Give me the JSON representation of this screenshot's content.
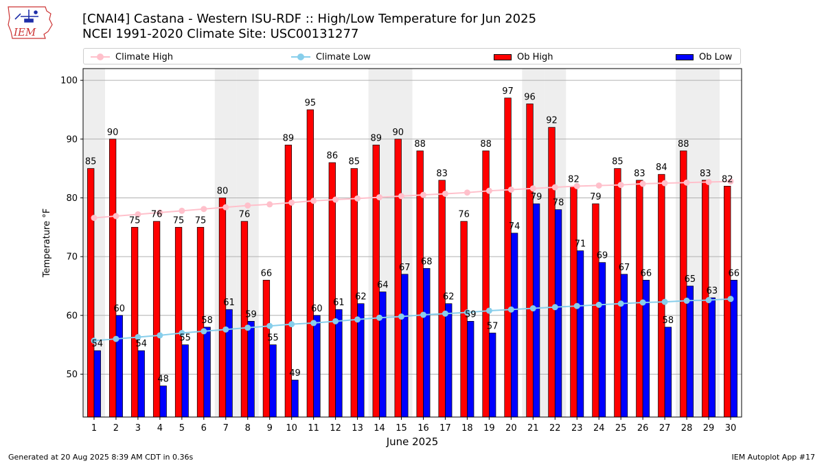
{
  "title_line1": "[CNAI4] Castana - Western ISU-RDF :: High/Low Temperature for Jun 2025",
  "title_line2": "NCEI 1991-2020 Climate Site: USC00131277",
  "logo_text": "IEM",
  "legend": {
    "climate_high": "Climate High",
    "climate_low": "Climate Low",
    "ob_high": "Ob High",
    "ob_low": "Ob Low"
  },
  "footer": {
    "generated": "Generated at 20 Aug 2025 8:39 AM CDT in 0.36s",
    "app": "IEM Autoplot App #17"
  },
  "colors": {
    "ob_high": "#ff0000",
    "ob_low": "#0000ff",
    "climate_high": "#ffc0cb",
    "climate_low": "#87ceeb",
    "weekend_shade": "#eeeeee"
  },
  "chart_data": {
    "type": "bar",
    "xlabel": "June 2025",
    "ylabel": "Temperature °F",
    "ylim": [
      42.7,
      102
    ],
    "yticks": [
      50,
      60,
      70,
      80,
      90,
      100
    ],
    "grid": "horizontal",
    "legend_position": "top",
    "categories": [
      "1",
      "2",
      "3",
      "4",
      "5",
      "6",
      "7",
      "8",
      "9",
      "10",
      "11",
      "12",
      "13",
      "14",
      "15",
      "16",
      "17",
      "18",
      "19",
      "20",
      "21",
      "22",
      "23",
      "24",
      "25",
      "26",
      "27",
      "28",
      "29",
      "30"
    ],
    "weekend_days": [
      1,
      7,
      8,
      14,
      15,
      21,
      22,
      28,
      29
    ],
    "series": [
      {
        "name": "Ob High",
        "kind": "bar",
        "values": [
          85,
          90,
          75,
          76,
          75,
          75,
          80,
          76,
          66,
          89,
          95,
          86,
          85,
          89,
          90,
          88,
          83,
          76,
          88,
          97,
          96,
          92,
          82,
          79,
          85,
          83,
          84,
          88,
          83,
          82
        ]
      },
      {
        "name": "Ob Low",
        "kind": "bar",
        "values": [
          54,
          60,
          54,
          48,
          55,
          58,
          61,
          59,
          55,
          49,
          60,
          61,
          62,
          64,
          67,
          68,
          62,
          59,
          57,
          74,
          79,
          78,
          71,
          69,
          67,
          66,
          58,
          65,
          63,
          66
        ]
      },
      {
        "name": "Climate High",
        "kind": "line",
        "values": [
          76.6,
          76.9,
          77.2,
          77.5,
          77.8,
          78.1,
          78.4,
          78.7,
          78.9,
          79.2,
          79.5,
          79.7,
          79.9,
          80.1,
          80.3,
          80.5,
          80.7,
          80.9,
          81.2,
          81.4,
          81.6,
          81.8,
          82.0,
          82.1,
          82.2,
          82.4,
          82.5,
          82.6,
          82.7,
          82.8
        ]
      },
      {
        "name": "Climate Low",
        "kind": "line",
        "values": [
          55.7,
          56.0,
          56.3,
          56.6,
          57.0,
          57.3,
          57.6,
          57.9,
          58.2,
          58.5,
          58.7,
          59.0,
          59.3,
          59.6,
          59.8,
          60.1,
          60.3,
          60.5,
          60.8,
          61.0,
          61.2,
          61.4,
          61.6,
          61.8,
          62.0,
          62.2,
          62.3,
          62.5,
          62.6,
          62.8
        ]
      }
    ]
  }
}
